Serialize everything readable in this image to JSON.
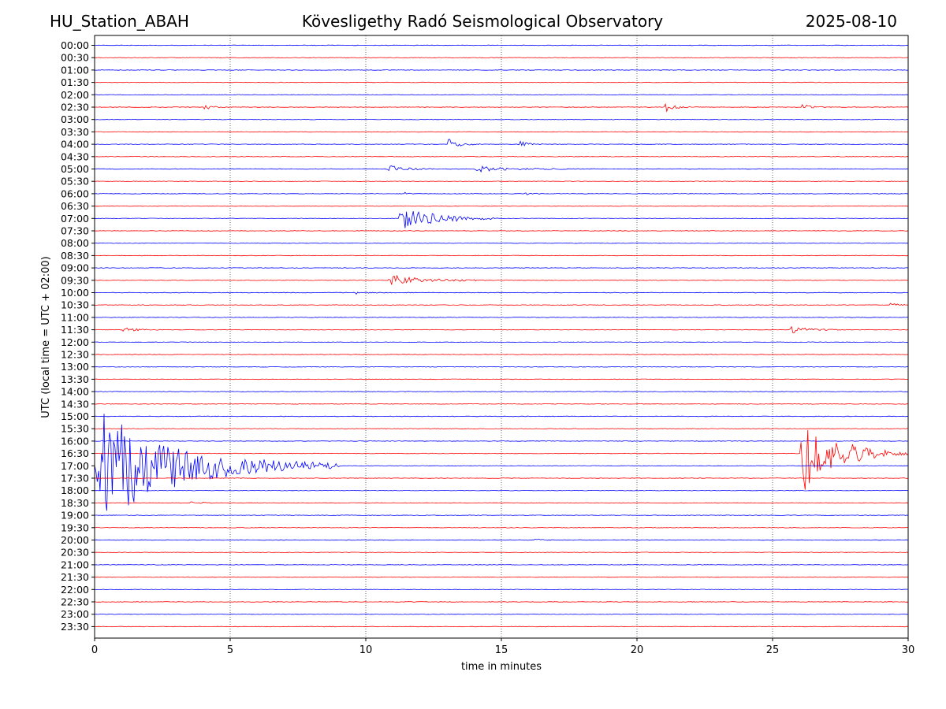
{
  "header": {
    "station": "HU_Station_ABAH",
    "observatory": "Kövesligethy Radó Seismological Observatory",
    "date": "2025-08-10"
  },
  "colors": {
    "even_trace": "#0000ff",
    "odd_trace": "#ff0000",
    "grid": "#000000",
    "background": "#ffffff"
  },
  "chart_data": {
    "type": "line",
    "subtype": "helicorder",
    "xlabel": "time in minutes",
    "ylabel": "UTC (local time = UTC + 02:00)",
    "xlim": [
      0,
      30
    ],
    "x_ticks": [
      0,
      5,
      10,
      15,
      20,
      25,
      30
    ],
    "grid": "vertical dotted lines at x ticks",
    "row_labels": [
      "00:00",
      "00:30",
      "01:00",
      "01:30",
      "02:00",
      "02:30",
      "03:00",
      "03:30",
      "04:00",
      "04:30",
      "05:00",
      "05:30",
      "06:00",
      "06:30",
      "07:00",
      "07:30",
      "08:00",
      "08:30",
      "09:00",
      "09:30",
      "10:00",
      "10:30",
      "11:00",
      "11:30",
      "12:00",
      "12:30",
      "13:00",
      "13:30",
      "14:00",
      "14:30",
      "15:00",
      "15:30",
      "16:00",
      "16:30",
      "17:00",
      "17:30",
      "18:00",
      "18:30",
      "19:00",
      "19:30",
      "20:00",
      "20:30",
      "21:00",
      "21:30",
      "22:00",
      "22:30",
      "23:00",
      "23:30"
    ],
    "row_colors": "alternating blue (:00 rows) and red (:30 rows)",
    "events": [
      {
        "row": "02:30",
        "start_min": 4.0,
        "end_min": 5.0,
        "peak": 0.4
      },
      {
        "row": "02:30",
        "start_min": 21.0,
        "end_min": 22.0,
        "peak": 0.8
      },
      {
        "row": "02:30",
        "start_min": 26.0,
        "end_min": 27.0,
        "peak": 0.6
      },
      {
        "row": "04:00",
        "start_min": 13.0,
        "end_min": 14.2,
        "peak": 0.9
      },
      {
        "row": "04:00",
        "start_min": 15.6,
        "end_min": 16.5,
        "peak": 0.6
      },
      {
        "row": "05:00",
        "start_min": 10.7,
        "end_min": 12.5,
        "peak": 0.7
      },
      {
        "row": "05:00",
        "start_min": 14.0,
        "end_min": 18.0,
        "peak": 0.45
      },
      {
        "row": "06:00",
        "start_min": 11.4,
        "end_min": 11.7,
        "peak": 0.3
      },
      {
        "row": "06:00",
        "start_min": 15.8,
        "end_min": 16.5,
        "peak": 0.3
      },
      {
        "row": "07:00",
        "start_min": 11.2,
        "end_min": 15.0,
        "peak": 2.2
      },
      {
        "row": "09:30",
        "start_min": 10.8,
        "end_min": 14.5,
        "peak": 0.9
      },
      {
        "row": "10:00",
        "start_min": 9.6,
        "end_min": 10.4,
        "peak": 0.35
      },
      {
        "row": "10:30",
        "start_min": 29.3,
        "end_min": 30.0,
        "peak": 0.45
      },
      {
        "row": "11:30",
        "start_min": 1.0,
        "end_min": 2.4,
        "peak": 0.4
      },
      {
        "row": "11:30",
        "start_min": 25.6,
        "end_min": 27.5,
        "peak": 0.6
      },
      {
        "row": "16:30",
        "start_min": 26.0,
        "end_min": 30.0,
        "peak": 6.5
      },
      {
        "row": "17:00",
        "start_min": 0.0,
        "end_min": 9.0,
        "peak": 9.0
      },
      {
        "row": "18:30",
        "start_min": 3.5,
        "end_min": 4.5,
        "peak": 0.3
      },
      {
        "row": "20:00",
        "start_min": 16.2,
        "end_min": 16.8,
        "peak": 0.25
      }
    ]
  }
}
